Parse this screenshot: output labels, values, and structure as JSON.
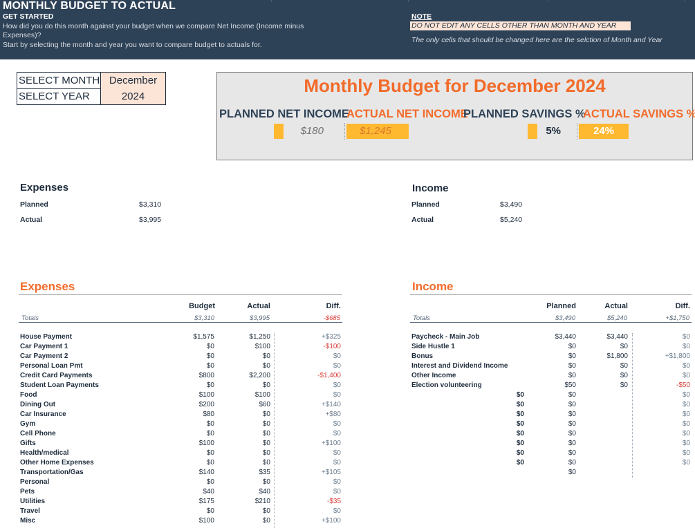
{
  "header": {
    "title": "MONTHLY BUDGET TO ACTUAL",
    "subtitle": "GET STARTED",
    "line1": "How did you do this month against your budget when we compare Net Income (Income minus",
    "line2": "Expenses)?",
    "line3": "Start by selecting the month and year you want to compare budget to actuals for.",
    "note_label": "NOTE",
    "note_box": "DO NOT EDIT ANY CELLS OTHER THAN MONTH AND YEAR",
    "note_text": "The only cells that should be changed here are the selction of Month and Year"
  },
  "selector": {
    "month_label": "SELECT MONTH",
    "month_value": "December",
    "year_label": "SELECT YEAR",
    "year_value": "2024"
  },
  "panel": {
    "title": "Monthly Budget for December 2024",
    "planned_net_label": "PLANNED NET INCOME",
    "planned_net_value": "$180",
    "actual_net_label": "ACTUAL NET INCOME",
    "actual_net_value": "$1,245",
    "planned_sav_label": "PLANNED SAVINGS %",
    "planned_sav_value": "5%",
    "actual_sav_label": "ACTUAL SAVINGS %",
    "actual_sav_value": "24%",
    "accent": "#f26b2a",
    "fill": "#ffb931"
  },
  "summary": {
    "expenses": {
      "heading": "Expenses",
      "planned_label": "Planned",
      "planned_value": "$3,310",
      "actual_label": "Actual",
      "actual_value": "$3,995"
    },
    "income": {
      "heading": "Income",
      "planned_label": "Planned",
      "planned_value": "$3,490",
      "actual_label": "Actual",
      "actual_value": "$5,240"
    }
  },
  "expenses": {
    "title": "Expenses",
    "col_budget": "Budget",
    "col_actual": "Actual",
    "col_diff": "Diff.",
    "totals_label": "Totals",
    "total_budget": "$3,310",
    "total_actual": "$3,995",
    "total_diff": "-$685",
    "rows": [
      {
        "label": "House Payment",
        "budget": "$1,575",
        "actual": "$1,250",
        "diff": "+$325",
        "neg": false
      },
      {
        "label": "Car Payment 1",
        "budget": "$0",
        "actual": "$100",
        "diff": "-$100",
        "neg": true
      },
      {
        "label": "Car Payment 2",
        "budget": "$0",
        "actual": "$0",
        "diff": "$0",
        "neg": false
      },
      {
        "label": "Personal Loan Pmt",
        "budget": "$0",
        "actual": "$0",
        "diff": "$0",
        "neg": false
      },
      {
        "label": "Credit Card Payments",
        "budget": "$800",
        "actual": "$2,200",
        "diff": "-$1,400",
        "neg": true
      },
      {
        "label": "Student Loan Payments",
        "budget": "$0",
        "actual": "$0",
        "diff": "$0",
        "neg": false
      },
      {
        "label": "Food",
        "budget": "$100",
        "actual": "$100",
        "diff": "$0",
        "neg": false
      },
      {
        "label": "Dining Out",
        "budget": "$200",
        "actual": "$60",
        "diff": "+$140",
        "neg": false
      },
      {
        "label": "Car Insurance",
        "budget": "$80",
        "actual": "$0",
        "diff": "+$80",
        "neg": false
      },
      {
        "label": "Gym",
        "budget": "$0",
        "actual": "$0",
        "diff": "$0",
        "neg": false
      },
      {
        "label": "Cell Phone",
        "budget": "$0",
        "actual": "$0",
        "diff": "$0",
        "neg": false
      },
      {
        "label": "Gifts",
        "budget": "$100",
        "actual": "$0",
        "diff": "+$100",
        "neg": false
      },
      {
        "label": "Health/medical",
        "budget": "$0",
        "actual": "$0",
        "diff": "$0",
        "neg": false
      },
      {
        "label": "Other Home Expenses",
        "budget": "$0",
        "actual": "$0",
        "diff": "$0",
        "neg": false
      },
      {
        "label": "Transportation/Gas",
        "budget": "$140",
        "actual": "$35",
        "diff": "+$105",
        "neg": false
      },
      {
        "label": "Personal",
        "budget": "$0",
        "actual": "$0",
        "diff": "$0",
        "neg": false
      },
      {
        "label": "Pets",
        "budget": "$40",
        "actual": "$40",
        "diff": "$0",
        "neg": false
      },
      {
        "label": "Utilities",
        "budget": "$175",
        "actual": "$210",
        "diff": "-$35",
        "neg": true
      },
      {
        "label": "Travel",
        "budget": "$0",
        "actual": "$0",
        "diff": "$0",
        "neg": false
      },
      {
        "label": "Misc",
        "budget": "$100",
        "actual": "$0",
        "diff": "+$100",
        "neg": false
      }
    ]
  },
  "income": {
    "title": "Income",
    "col_planned": "Planned",
    "col_actual": "Actual",
    "col_diff": "Diff.",
    "totals_label": "Totals",
    "total_planned": "$3,490",
    "total_actual": "$5,240",
    "total_diff": "+$1,750",
    "rows": [
      {
        "label": "Paycheck - Main Job",
        "extra": "",
        "planned": "$3,440",
        "actual": "$3,440",
        "diff": "$0",
        "neg": false
      },
      {
        "label": "Side Hustle 1",
        "extra": "",
        "planned": "$0",
        "actual": "$0",
        "diff": "$0",
        "neg": false
      },
      {
        "label": "Bonus",
        "extra": "",
        "planned": "$0",
        "actual": "$1,800",
        "diff": "+$1,800",
        "neg": false
      },
      {
        "label": "Interest and Dividend Income",
        "extra": "",
        "planned": "$0",
        "actual": "$0",
        "diff": "$0",
        "neg": false
      },
      {
        "label": "Other Income",
        "extra": "",
        "planned": "$0",
        "actual": "$0",
        "diff": "$0",
        "neg": false
      },
      {
        "label": "Election volunteering",
        "extra": "",
        "planned": "$50",
        "actual": "$0",
        "diff": "-$50",
        "neg": true
      },
      {
        "label": "",
        "extra": "$0",
        "planned": "$0",
        "actual": "",
        "diff": "$0",
        "neg": false
      },
      {
        "label": "",
        "extra": "$0",
        "planned": "$0",
        "actual": "",
        "diff": "$0",
        "neg": false
      },
      {
        "label": "",
        "extra": "$0",
        "planned": "$0",
        "actual": "",
        "diff": "$0",
        "neg": false
      },
      {
        "label": "",
        "extra": "$0",
        "planned": "$0",
        "actual": "",
        "diff": "$0",
        "neg": false
      },
      {
        "label": "",
        "extra": "$0",
        "planned": "$0",
        "actual": "",
        "diff": "$0",
        "neg": false
      },
      {
        "label": "",
        "extra": "$0",
        "planned": "$0",
        "actual": "",
        "diff": "$0",
        "neg": false
      },
      {
        "label": "",
        "extra": "$0",
        "planned": "$0",
        "actual": "",
        "diff": "$0",
        "neg": false
      },
      {
        "label": "",
        "extra": "$0",
        "planned": "$0",
        "actual": "",
        "diff": "$0",
        "neg": false
      },
      {
        "label": "",
        "extra": "",
        "planned": "$0",
        "actual": "",
        "diff": "",
        "neg": false
      }
    ]
  }
}
